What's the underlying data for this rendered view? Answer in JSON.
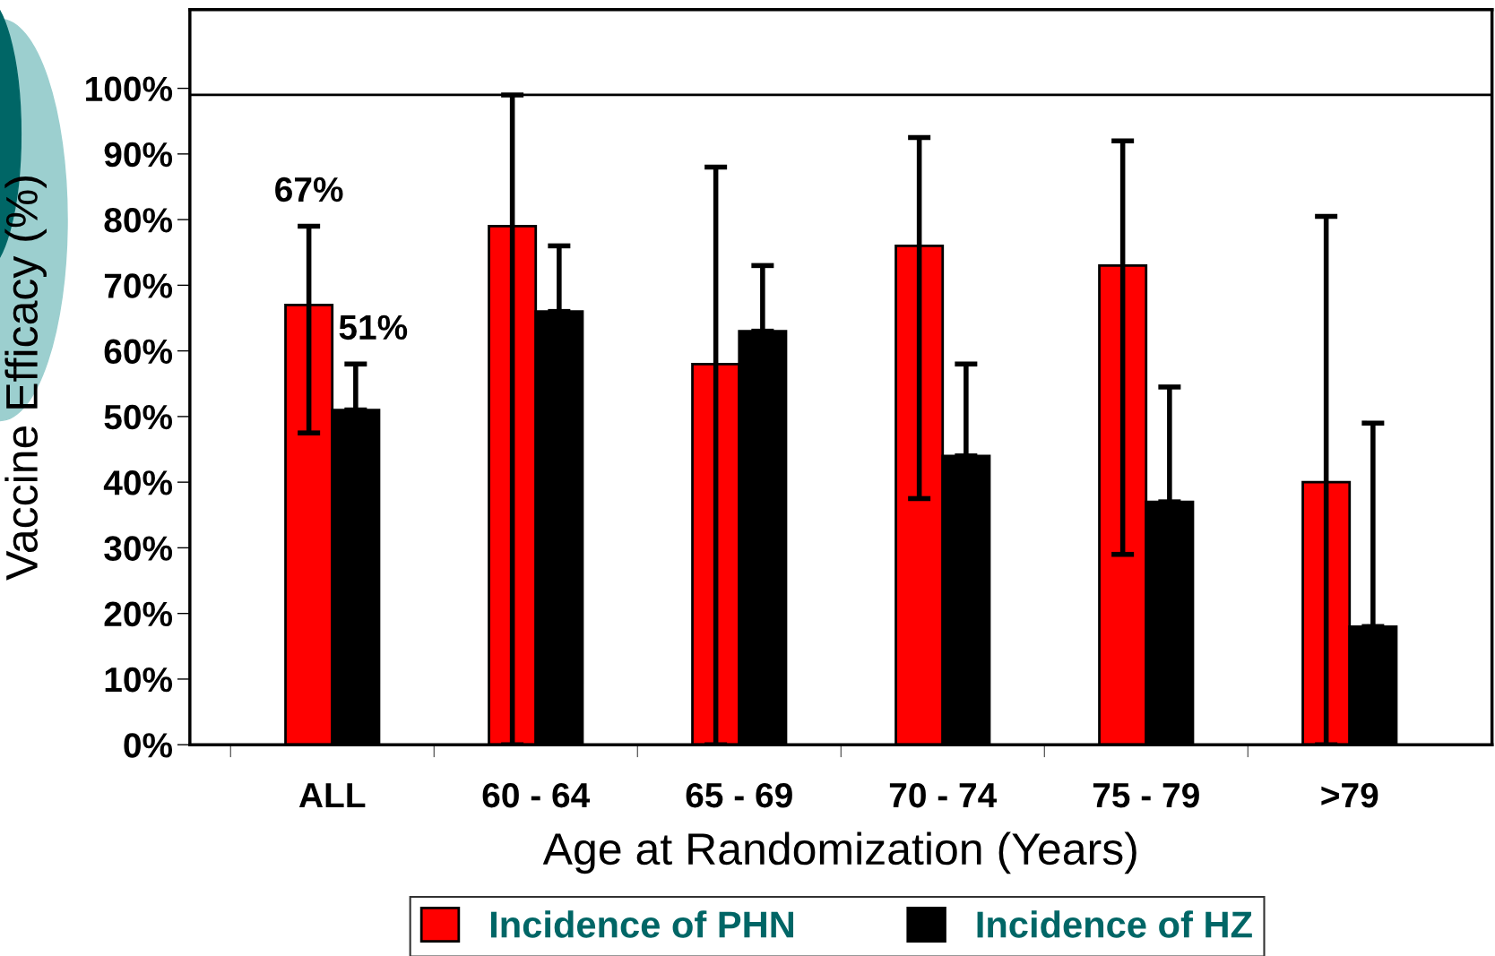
{
  "chart_data": {
    "type": "bar",
    "xlabel": "Age at Randomization (Years)",
    "ylabel": "Vaccine Efficacy (%)",
    "categories": [
      "ALL",
      "60 - 64",
      "65 - 69",
      "70 - 74",
      "75 - 79",
      ">79"
    ],
    "series": [
      {
        "name": "Incidence of PHN",
        "color": "#ff0000",
        "values": [
          67,
          79,
          58,
          76,
          73,
          40
        ],
        "errors": [
          [
            47.5,
            79
          ],
          [
            0,
            99
          ],
          [
            0,
            88
          ],
          [
            37.5,
            92.5
          ],
          [
            29,
            92
          ],
          [
            0,
            80.5
          ]
        ],
        "value_labels": [
          "67%",
          null,
          null,
          null,
          null,
          null
        ]
      },
      {
        "name": "Incidence of HZ",
        "color": "#000000",
        "values": [
          51,
          66,
          63,
          44,
          37,
          18
        ],
        "errors": [
          [
            51,
            58
          ],
          [
            66,
            76
          ],
          [
            63,
            73
          ],
          [
            44,
            58
          ],
          [
            37,
            54.5
          ],
          [
            18,
            49
          ]
        ],
        "value_labels": [
          "51%",
          null,
          null,
          null,
          null,
          null
        ]
      }
    ],
    "ylim": [
      0,
      112
    ],
    "yticks": [
      {
        "value": 0,
        "label": "0%"
      },
      {
        "value": 10,
        "label": "10%"
      },
      {
        "value": 20,
        "label": "20%"
      },
      {
        "value": 30,
        "label": "30%"
      },
      {
        "value": 40,
        "label": "40%"
      },
      {
        "value": 50,
        "label": "50%"
      },
      {
        "value": 60,
        "label": "60%"
      },
      {
        "value": 70,
        "label": "70%"
      },
      {
        "value": 80,
        "label": "80%"
      },
      {
        "value": 90,
        "label": "90%"
      },
      {
        "value": 100,
        "label": "100%"
      }
    ],
    "ref_lines": [
      {
        "axis": "y",
        "value": 99,
        "color": "#000000"
      }
    ],
    "grid": false,
    "legend": "bottom"
  }
}
